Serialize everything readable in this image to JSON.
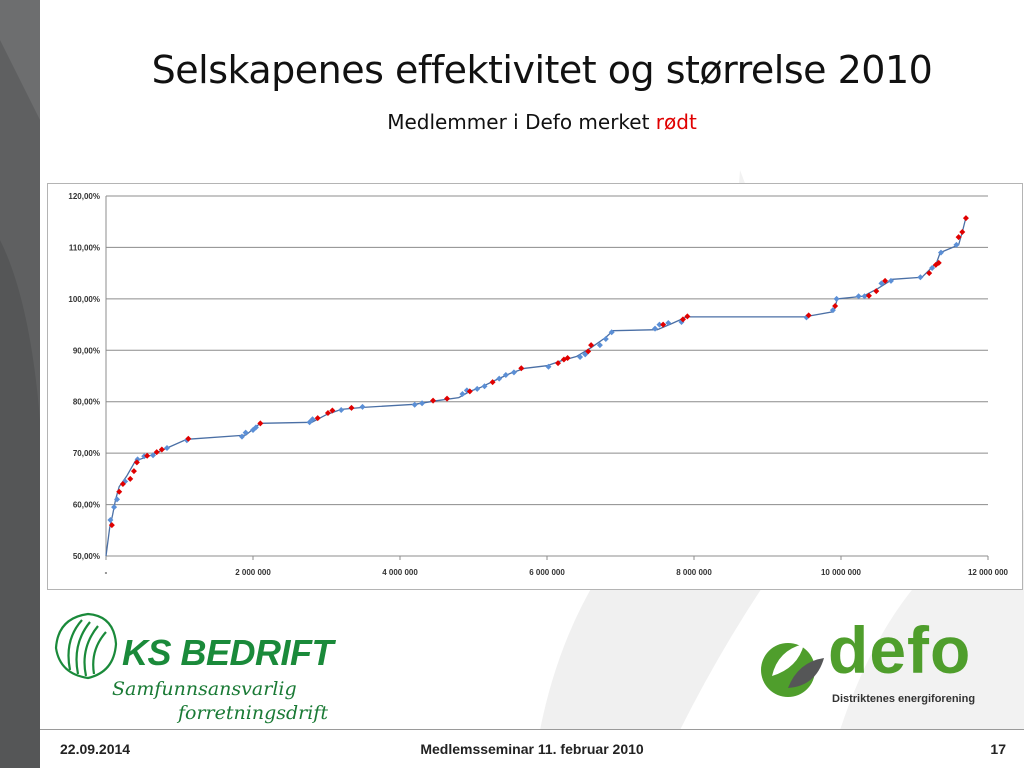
{
  "slide": {
    "title": "Selskapenes effektivitet og størrelse 2010",
    "subtitle_text": "Medlemmer i Defo merket",
    "subtitle_highlight": "rødt",
    "highlight_color": "#e00000"
  },
  "footer": {
    "date": "22.09.2014",
    "event": "Medlemsseminar 11. februar 2010",
    "page": "17"
  },
  "logos": {
    "ks_name": "KS BEDRIFT",
    "ks_tagline_1": "Samfunnsansvarlig",
    "ks_tagline_2": "forretningsdrift",
    "defo_name": "defo",
    "defo_tagline": "Distriktenes energiforening"
  },
  "chart_data": {
    "type": "line",
    "title": "",
    "xlabel": "",
    "ylabel": "",
    "x_ticks": [
      "-",
      "2 000 000",
      "4 000 000",
      "6 000 000",
      "8 000 000",
      "10 000 000",
      "12 000 000"
    ],
    "y_ticks": [
      "50,00%",
      "60,00%",
      "70,00%",
      "80,00%",
      "90,00%",
      "100,00%",
      "110,00%",
      "120,00%"
    ],
    "xlim": [
      0,
      12000000
    ],
    "ylim": [
      50,
      120
    ],
    "grid": "horizontal",
    "legend": "none",
    "line_color": "#4a6fa5",
    "member_color": "#e00000",
    "nonmember_color": "#5b8fd6",
    "curve": [
      [
        0,
        50
      ],
      [
        50000,
        55.5
      ],
      [
        90000,
        58
      ],
      [
        130000,
        61
      ],
      [
        180000,
        63.5
      ],
      [
        280000,
        65.5
      ],
      [
        400000,
        68.5
      ],
      [
        600000,
        69.5
      ],
      [
        800000,
        70.8
      ],
      [
        1100000,
        72.7
      ],
      [
        1900000,
        73.5
      ],
      [
        2100000,
        75.8
      ],
      [
        2800000,
        76
      ],
      [
        3000000,
        77.5
      ],
      [
        3200000,
        78.5
      ],
      [
        3500000,
        78.9
      ],
      [
        4200000,
        79.5
      ],
      [
        4500000,
        80.2
      ],
      [
        4800000,
        80.8
      ],
      [
        4950000,
        82
      ],
      [
        5100000,
        82.8
      ],
      [
        5300000,
        84.2
      ],
      [
        5500000,
        85.5
      ],
      [
        5700000,
        86.5
      ],
      [
        6000000,
        87
      ],
      [
        6200000,
        88
      ],
      [
        6400000,
        88.8
      ],
      [
        6600000,
        90.5
      ],
      [
        6800000,
        92.5
      ],
      [
        6900000,
        93.8
      ],
      [
        7500000,
        94
      ],
      [
        7700000,
        95.2
      ],
      [
        7900000,
        96.5
      ],
      [
        9500000,
        96.5
      ],
      [
        9900000,
        97.5
      ],
      [
        9950000,
        100
      ],
      [
        10300000,
        100.5
      ],
      [
        10500000,
        102
      ],
      [
        10700000,
        103.8
      ],
      [
        11100000,
        104.2
      ],
      [
        11300000,
        107
      ],
      [
        11350000,
        109
      ],
      [
        11600000,
        110.5
      ],
      [
        11650000,
        113
      ],
      [
        11700000,
        115.8
      ]
    ],
    "members": [
      [
        80000,
        56
      ],
      [
        180000,
        62.5
      ],
      [
        230000,
        64
      ],
      [
        330000,
        65
      ],
      [
        380000,
        66.5
      ],
      [
        420000,
        68.2
      ],
      [
        560000,
        69.5
      ],
      [
        690000,
        70.2
      ],
      [
        760000,
        70.7
      ],
      [
        1120000,
        72.8
      ],
      [
        2100000,
        75.8
      ],
      [
        2880000,
        76.8
      ],
      [
        3020000,
        77.8
      ],
      [
        3080000,
        78.3
      ],
      [
        3340000,
        78.8
      ],
      [
        4450000,
        80.2
      ],
      [
        4640000,
        80.6
      ],
      [
        4950000,
        82
      ],
      [
        5260000,
        83.8
      ],
      [
        5650000,
        86.5
      ],
      [
        6150000,
        87.5
      ],
      [
        6230000,
        88.2
      ],
      [
        6280000,
        88.5
      ],
      [
        6560000,
        89.8
      ],
      [
        6600000,
        91
      ],
      [
        7580000,
        95
      ],
      [
        7850000,
        96
      ],
      [
        7910000,
        96.6
      ],
      [
        9560000,
        96.8
      ],
      [
        9920000,
        98.6
      ],
      [
        10380000,
        100.6
      ],
      [
        10480000,
        101.5
      ],
      [
        10600000,
        103.5
      ],
      [
        11200000,
        105
      ],
      [
        11290000,
        106.6
      ],
      [
        11330000,
        107
      ],
      [
        11600000,
        112
      ],
      [
        11650000,
        113
      ],
      [
        11700000,
        115.7
      ]
    ],
    "non_members": [
      [
        60000,
        57
      ],
      [
        110000,
        59.5
      ],
      [
        150000,
        61
      ],
      [
        260000,
        64.5
      ],
      [
        430000,
        68.8
      ],
      [
        520000,
        69.4
      ],
      [
        640000,
        69.6
      ],
      [
        830000,
        71
      ],
      [
        1100000,
        72.5
      ],
      [
        1850000,
        73.2
      ],
      [
        1900000,
        74
      ],
      [
        2000000,
        74.5
      ],
      [
        2040000,
        75
      ],
      [
        2770000,
        76
      ],
      [
        2810000,
        76.6
      ],
      [
        3200000,
        78.4
      ],
      [
        3490000,
        79
      ],
      [
        4200000,
        79.4
      ],
      [
        4300000,
        79.7
      ],
      [
        4850000,
        81.5
      ],
      [
        4910000,
        82.2
      ],
      [
        5050000,
        82.5
      ],
      [
        5150000,
        83
      ],
      [
        5350000,
        84.5
      ],
      [
        5440000,
        85.2
      ],
      [
        5550000,
        85.7
      ],
      [
        6020000,
        86.8
      ],
      [
        6450000,
        88.7
      ],
      [
        6520000,
        89.2
      ],
      [
        6720000,
        91
      ],
      [
        6800000,
        92.2
      ],
      [
        6880000,
        93.5
      ],
      [
        7470000,
        94.2
      ],
      [
        7530000,
        95
      ],
      [
        7650000,
        95.3
      ],
      [
        7830000,
        95.5
      ],
      [
        9530000,
        96.4
      ],
      [
        9890000,
        97.8
      ],
      [
        9940000,
        100
      ],
      [
        10240000,
        100.5
      ],
      [
        10320000,
        100.5
      ],
      [
        10550000,
        103
      ],
      [
        10680000,
        103.5
      ],
      [
        11080000,
        104.2
      ],
      [
        11240000,
        106
      ],
      [
        11360000,
        109
      ],
      [
        11570000,
        110.5
      ]
    ]
  }
}
